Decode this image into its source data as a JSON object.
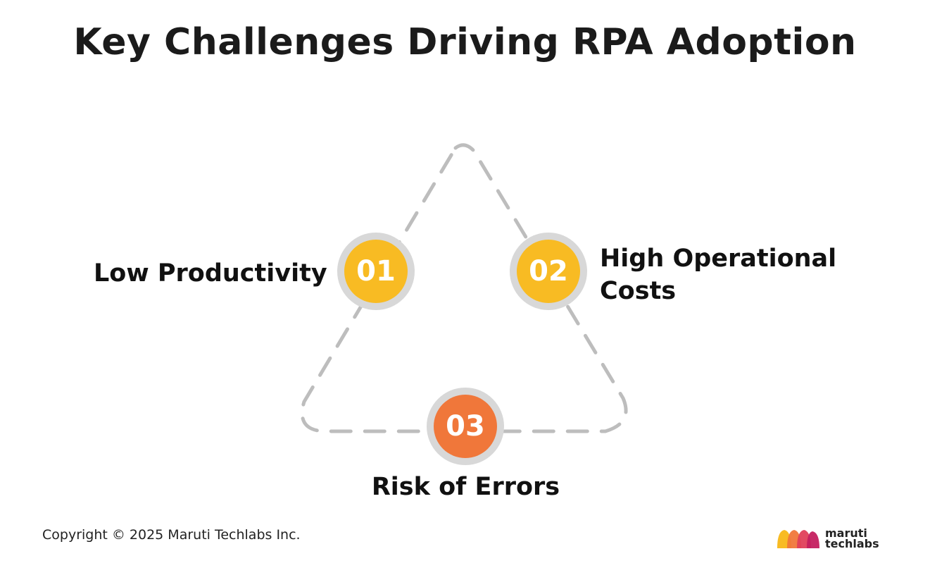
{
  "title": "Key Challenges Driving RPA Adoption",
  "challenges": [
    {
      "number": "01",
      "label": "Low Productivity",
      "color": "#f8bb23"
    },
    {
      "number": "02",
      "label_line1": "High Operational",
      "label_line2": "Costs",
      "color": "#f8bb23"
    },
    {
      "number": "03",
      "label": "Risk of Errors",
      "color": "#f0773a"
    }
  ],
  "colors": {
    "ring": "#d8d8d8",
    "dashed_line": "#bdbdbd",
    "logo_yellow": "#f8bb23",
    "logo_orange": "#f0773a",
    "logo_red": "#e0405a",
    "logo_magenta": "#c41f5f"
  },
  "footer": {
    "copyright": "Copyright © 2025 Maruti Techlabs Inc.",
    "logo_line1": "maruti",
    "logo_line2": "techlabs"
  }
}
